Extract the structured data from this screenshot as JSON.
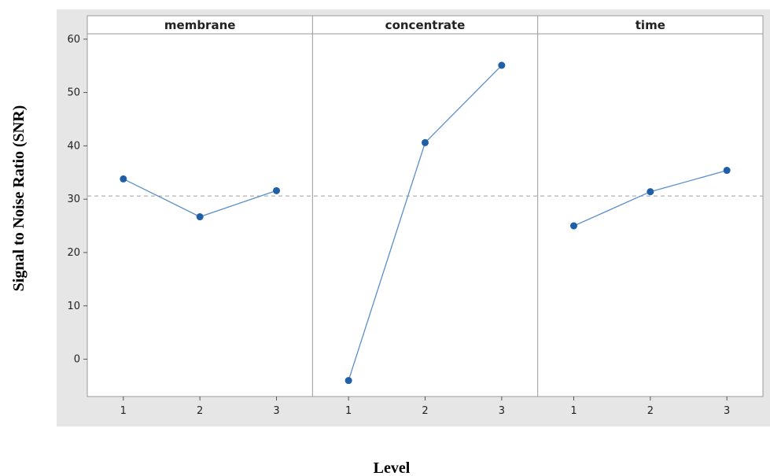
{
  "chart_data": {
    "type": "line",
    "xlabel": "Level",
    "ylabel": "Signal to Noise Ratio (SNR)",
    "ylim": [
      -7,
      61
    ],
    "y_ticks": [
      0,
      10,
      20,
      30,
      40,
      50,
      60
    ],
    "x_categories": [
      "1",
      "2",
      "3"
    ],
    "reference_line": 30.6,
    "grid": false,
    "panels": [
      {
        "title": "membrane",
        "values": [
          33.8,
          26.7,
          31.6
        ]
      },
      {
        "title": "concentrate",
        "values": [
          -4.0,
          40.6,
          55.1
        ]
      },
      {
        "title": "time",
        "values": [
          25.0,
          31.4,
          35.4
        ]
      }
    ],
    "colors": {
      "line": "#5b8fc7",
      "marker": "#1f5fa8",
      "reference": "#b3b3b3",
      "background": "#e6e6e6",
      "plot_area": "#ffffff"
    }
  }
}
